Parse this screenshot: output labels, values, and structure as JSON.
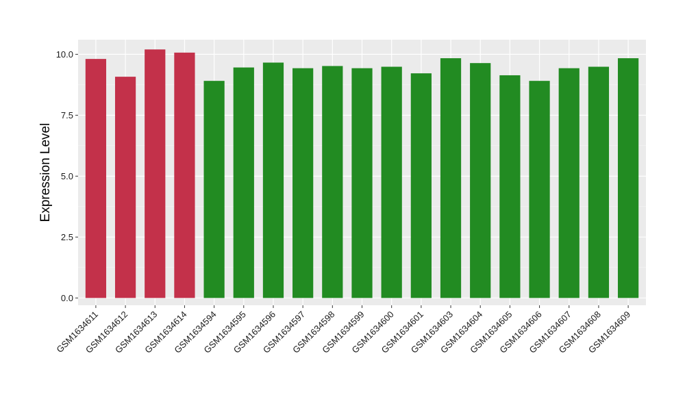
{
  "chart_data": {
    "type": "bar",
    "title": "",
    "xlabel": "",
    "ylabel": "Expression Level",
    "ylim": [
      -0.3,
      10.6
    ],
    "yticks": [
      0.0,
      2.5,
      5.0,
      7.5,
      10.0
    ],
    "ytick_labels": [
      "0.0",
      "2.5",
      "5.0",
      "7.5",
      "10.0"
    ],
    "grid": true,
    "legend": "none",
    "categories": [
      "GSM1634611",
      "GSM1634612",
      "GSM1634613",
      "GSM1634614",
      "GSM1634594",
      "GSM1634595",
      "GSM1634596",
      "GSM1634597",
      "GSM1634598",
      "GSM1634599",
      "GSM1634600",
      "GSM1634601",
      "GSM1634603",
      "GSM1634604",
      "GSM1634605",
      "GSM1634606",
      "GSM1634607",
      "GSM1634608",
      "GSM1634609"
    ],
    "values": [
      9.81,
      9.08,
      10.2,
      10.07,
      8.91,
      9.46,
      9.66,
      9.43,
      9.52,
      9.43,
      9.49,
      9.22,
      9.84,
      9.64,
      9.14,
      8.91,
      9.43,
      9.49,
      9.84
    ],
    "group_of_bar": [
      "red",
      "red",
      "red",
      "red",
      "green",
      "green",
      "green",
      "green",
      "green",
      "green",
      "green",
      "green",
      "green",
      "green",
      "green",
      "green",
      "green",
      "green",
      "green"
    ],
    "colors": {
      "red": "#c3314a",
      "green": "#228b22",
      "panel": "#ebebeb",
      "grid_major": "#ffffff",
      "grid_minor": "#f5f5f5"
    }
  }
}
